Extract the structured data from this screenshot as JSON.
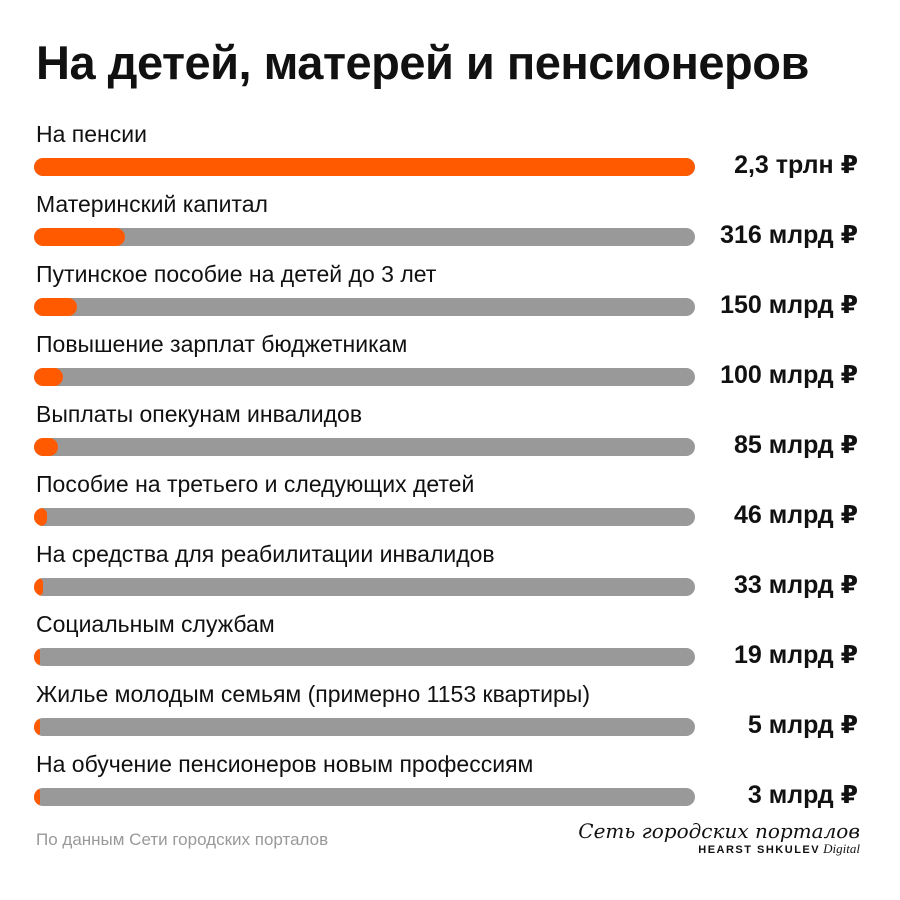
{
  "title": "На детей, матерей и пенсионеров",
  "chart_data": {
    "type": "bar",
    "orientation": "horizontal",
    "unit": "млрд ₽",
    "categories": [
      "На пенсии",
      "Материнский капитал",
      "Путинское пособие на детей до 3 лет",
      "Повышение зарплат бюджетникам",
      "Выплаты опекунам инвалидов",
      "Пособие на третьего и следующих детей",
      "На средства для реабилитации инвалидов",
      "Социальным службам",
      "Жилье молодым семьям (примерно 1153 квартиры)",
      "На обучение пенсионеров новым профессиям"
    ],
    "values": [
      2300,
      316,
      150,
      100,
      85,
      46,
      33,
      19,
      5,
      3
    ],
    "value_labels": [
      "2,3 трлн ₽",
      "316 млрд ₽",
      "150 млрд ₽",
      "100 млрд ₽",
      "85 млрд ₽",
      "46 млрд ₽",
      "33 млрд ₽",
      "19 млрд ₽",
      "5 млрд ₽",
      "3 млрд ₽"
    ],
    "xlim": [
      0,
      2300
    ],
    "colors": {
      "fill": "#ff5a00",
      "track": "#999999"
    },
    "grid": false,
    "legend": "none"
  },
  "source": "По данным Сети городских порталов",
  "logo": {
    "name": "Сеть городских порталов",
    "brand": "HEARST SHKULEV",
    "suffix": "Digital"
  }
}
